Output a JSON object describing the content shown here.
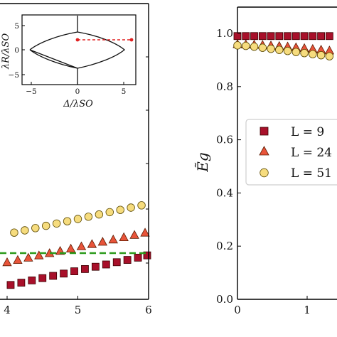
{
  "chart_data": [
    {
      "type": "scatter",
      "panel": "left",
      "x_ticks": [
        "4",
        "5",
        "6"
      ],
      "xlim": [
        3.98,
        6.0
      ],
      "reference_line": {
        "style": "dashed",
        "color": "#2a9a1a"
      },
      "series": [
        {
          "name": "L = 9",
          "marker": "square",
          "color": "#a8102a",
          "x": [
            4.05,
            4.2,
            4.35,
            4.5,
            4.65,
            4.8,
            4.95,
            5.1,
            5.25,
            5.4,
            5.55,
            5.7,
            5.85,
            5.98
          ],
          "y": [
            0.76,
            0.77,
            0.78,
            0.79,
            0.8,
            0.81,
            0.82,
            0.83,
            0.84,
            0.85,
            0.86,
            0.87,
            0.88,
            0.89
          ]
        },
        {
          "name": "L = 24",
          "marker": "triangle",
          "color": "#e8543a",
          "x": [
            4.0,
            4.15,
            4.3,
            4.45,
            4.6,
            4.75,
            4.9,
            5.05,
            5.2,
            5.35,
            5.5,
            5.65,
            5.8,
            5.95
          ],
          "y": [
            0.86,
            0.87,
            0.88,
            0.89,
            0.9,
            0.91,
            0.92,
            0.93,
            0.94,
            0.95,
            0.96,
            0.97,
            0.98,
            0.99
          ]
        },
        {
          "name": "L = 51",
          "marker": "circle",
          "color": "#f6dc7e",
          "x": [
            4.1,
            4.25,
            4.4,
            4.55,
            4.7,
            4.85,
            5.0,
            5.15,
            5.3,
            5.45,
            5.6,
            5.75,
            5.9
          ],
          "y": [
            0.99,
            1.0,
            1.01,
            1.02,
            1.03,
            1.04,
            1.05,
            1.06,
            1.07,
            1.08,
            1.09,
            1.1,
            1.11
          ]
        }
      ],
      "inset": {
        "xlabel": "Δ/λSO",
        "ylabel": "λR/λSO",
        "x_ticks": [
          "−5",
          "0",
          "5"
        ],
        "y_ticks": [
          "5",
          "0",
          "−5"
        ],
        "xlim": [
          -6,
          6
        ],
        "ylim": [
          -6,
          6
        ],
        "boundary": "lens-shaped phase boundary with vertical cuts at Δ = 0",
        "path": {
          "x": [
            0,
            6
          ],
          "y": [
            2,
            2
          ],
          "color": "#e02020",
          "style": "dashed"
        }
      }
    },
    {
      "type": "scatter",
      "panel": "right",
      "ylabel": "Ẽg",
      "y_ticks": [
        "1.0",
        "0.8",
        "0.6",
        "0.4",
        "0.2",
        "0.0"
      ],
      "x_ticks": [
        "0",
        "1"
      ],
      "ylim": [
        0.0,
        1.1
      ],
      "legend": {
        "placement": "center-right",
        "entries": [
          "L = 9",
          "L = 24",
          "L = 51"
        ]
      },
      "series": [
        {
          "name": "L = 9",
          "marker": "square",
          "color": "#a8102a",
          "x": [
            0.0,
            0.12,
            0.24,
            0.36,
            0.48,
            0.6,
            0.72,
            0.84,
            0.96,
            1.08,
            1.2,
            1.32
          ],
          "y": [
            0.99,
            0.99,
            0.99,
            0.99,
            0.99,
            0.99,
            0.99,
            0.99,
            0.99,
            0.99,
            0.99,
            0.99
          ]
        },
        {
          "name": "L = 24",
          "marker": "triangle",
          "color": "#e8543a",
          "x": [
            0.0,
            0.12,
            0.24,
            0.36,
            0.48,
            0.6,
            0.72,
            0.84,
            0.96,
            1.08,
            1.2,
            1.32
          ],
          "y": [
            0.96,
            0.959,
            0.958,
            0.957,
            0.955,
            0.953,
            0.951,
            0.948,
            0.945,
            0.942,
            0.939,
            0.936
          ]
        },
        {
          "name": "L = 51",
          "marker": "circle",
          "color": "#f6dc7e",
          "x": [
            0.0,
            0.12,
            0.24,
            0.36,
            0.48,
            0.6,
            0.72,
            0.84,
            0.96,
            1.08,
            1.2,
            1.32
          ],
          "y": [
            0.955,
            0.953,
            0.95,
            0.946,
            0.942,
            0.938,
            0.934,
            0.93,
            0.926,
            0.922,
            0.918,
            0.914
          ]
        }
      ]
    }
  ]
}
